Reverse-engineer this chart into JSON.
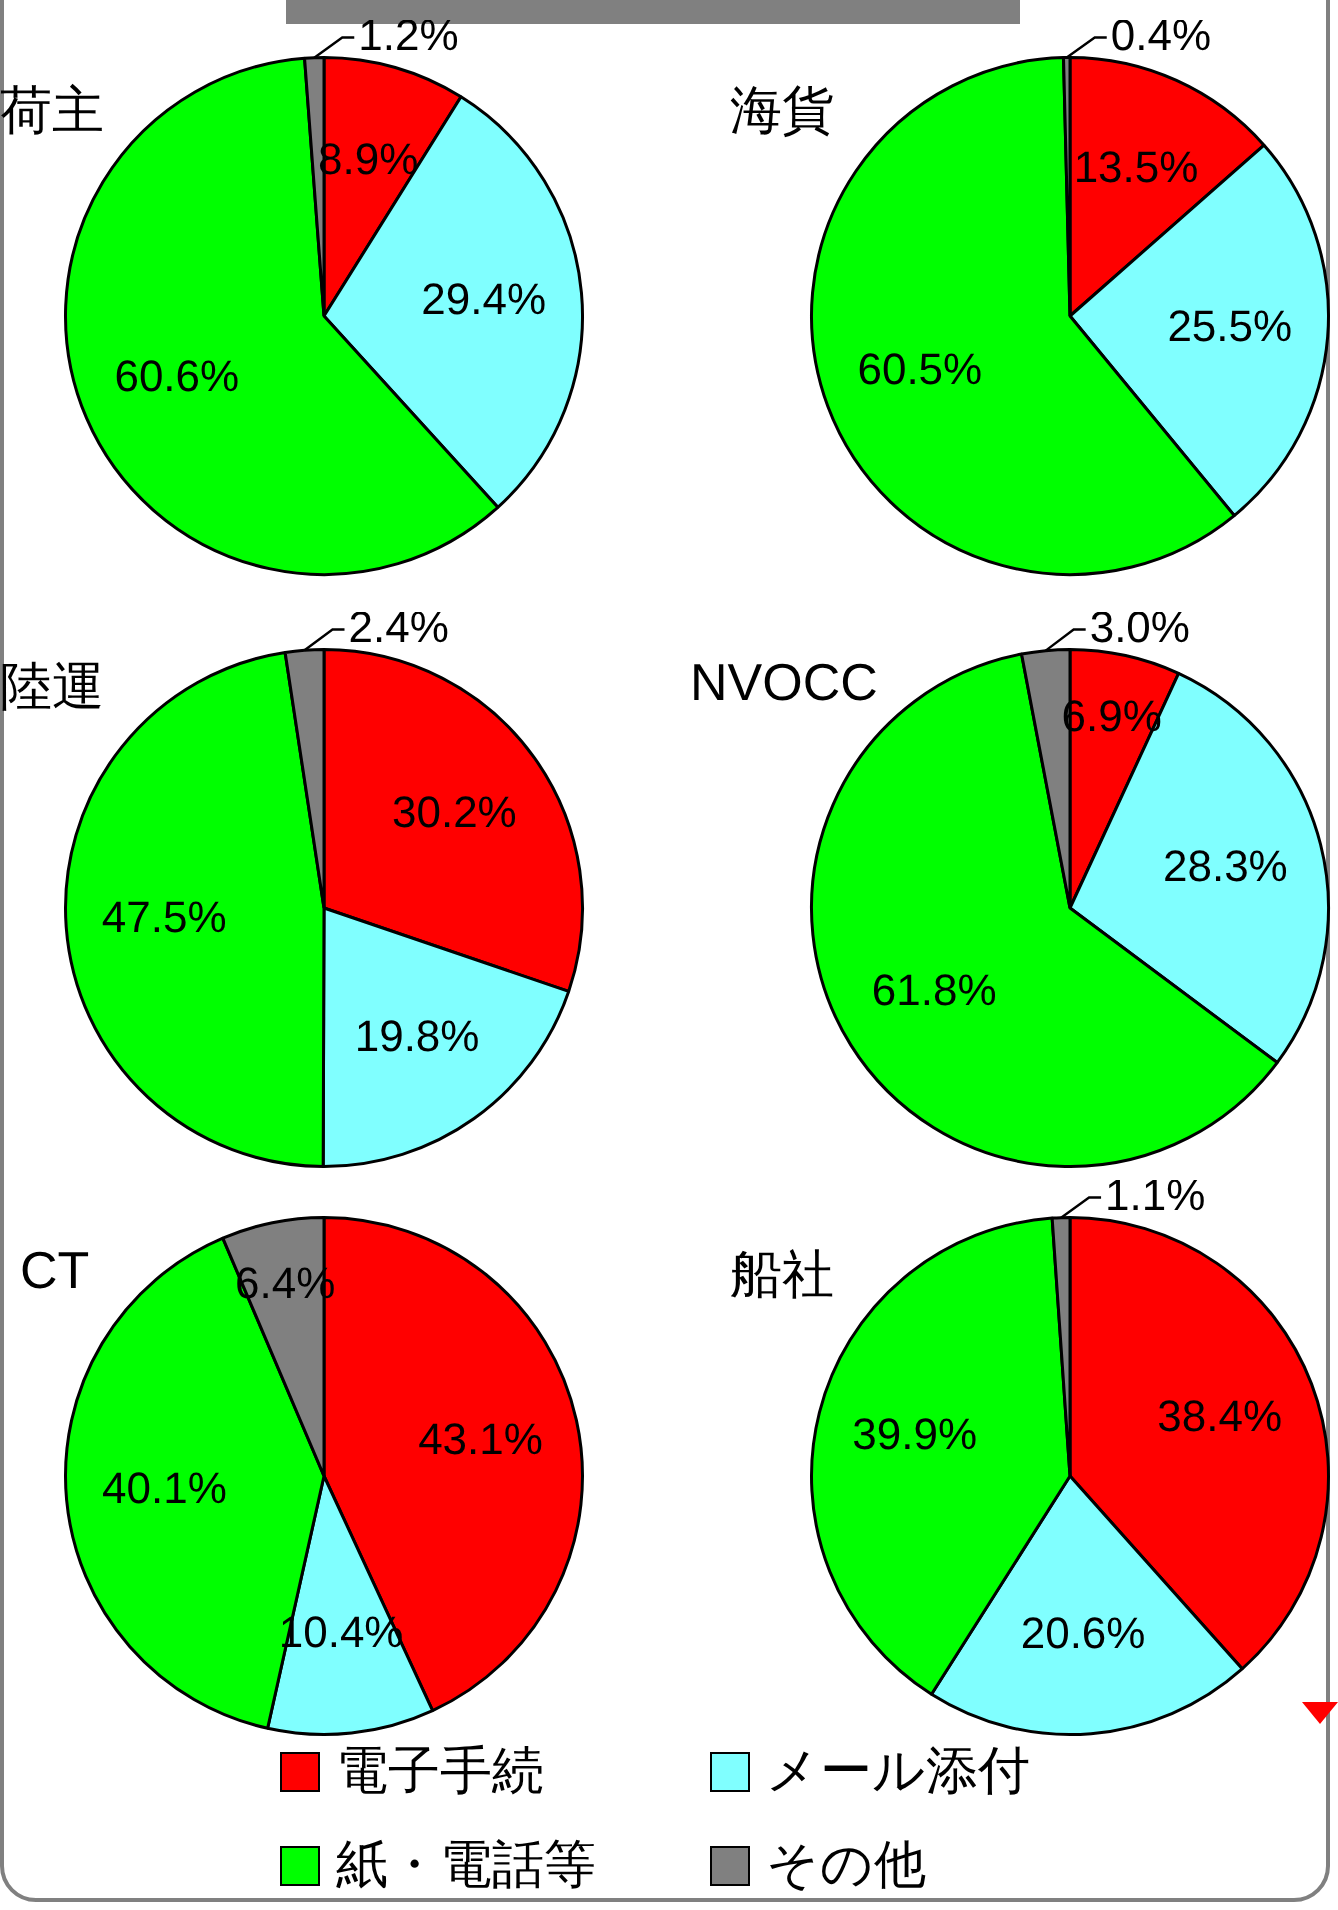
{
  "chart_data": [
    {
      "type": "pie",
      "title": "荷主",
      "categories": [
        null,
        null,
        null,
        null
      ],
      "values": [
        8.9,
        29.4,
        60.6,
        1.2
      ],
      "value_labels": [
        "8.9%",
        "29.4%",
        "60.6%",
        "1.2%"
      ],
      "colors": [
        "#ff0000",
        "#80ffff",
        "#00ff00",
        "#808080"
      ]
    },
    {
      "type": "pie",
      "title": "海貨",
      "categories": [
        null,
        null,
        null,
        null
      ],
      "values": [
        13.5,
        25.5,
        60.5,
        0.4
      ],
      "value_labels": [
        "13.5%",
        "25.5%",
        "60.5%",
        "0.4%"
      ],
      "colors": [
        "#ff0000",
        "#80ffff",
        "#00ff00",
        "#808080"
      ]
    },
    {
      "type": "pie",
      "title": "陸運",
      "categories": [
        null,
        null,
        null,
        null
      ],
      "values": [
        30.2,
        19.8,
        47.5,
        2.4
      ],
      "value_labels": [
        "30.2%",
        "19.8%",
        "47.5%",
        "2.4%"
      ],
      "colors": [
        "#ff0000",
        "#80ffff",
        "#00ff00",
        "#808080"
      ]
    },
    {
      "type": "pie",
      "title": "NVOCC",
      "categories": [
        null,
        null,
        null,
        null
      ],
      "values": [
        6.9,
        28.3,
        61.8,
        3.0
      ],
      "value_labels": [
        "6.9%",
        "28.3%",
        "61.8%",
        "3.0%"
      ],
      "colors": [
        "#ff0000",
        "#80ffff",
        "#00ff00",
        "#808080"
      ]
    },
    {
      "type": "pie",
      "title": "CT",
      "categories": [
        null,
        null,
        null,
        null
      ],
      "values": [
        43.1,
        10.4,
        40.1,
        6.4
      ],
      "value_labels": [
        "43.1%",
        "10.4%",
        "40.1%",
        "6.4%"
      ],
      "colors": [
        "#ff0000",
        "#80ffff",
        "#00ff00",
        "#808080"
      ]
    },
    {
      "type": "pie",
      "title": "船社",
      "categories": [
        "電子手続",
        "メール添付",
        "紙・電話等",
        "その他"
      ],
      "values": [
        38.4,
        20.6,
        39.9,
        1.1
      ],
      "value_labels": [
        "38.4%",
        "20.6%",
        "39.9%",
        "1.1%"
      ],
      "colors": [
        "#ff0000",
        "#80ffff",
        "#00ff00",
        "#808080"
      ],
      "legend": "bottom"
    }
  ]
}
